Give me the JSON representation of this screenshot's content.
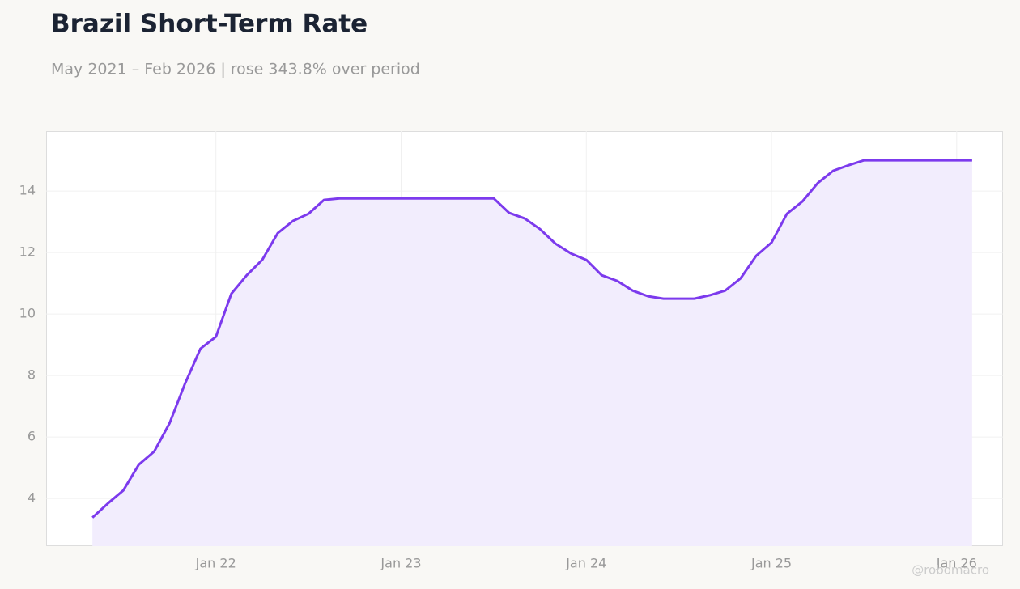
{
  "chart_data": {
    "type": "line",
    "title": "Brazil Short-Term Rate",
    "subtitle": "May 2021 – Feb 2026 | rose 343.8% over period",
    "watermark": "@robomacro",
    "x": [
      "2021-05",
      "2021-06",
      "2021-07",
      "2021-08",
      "2021-09",
      "2021-10",
      "2021-11",
      "2021-12",
      "2022-01",
      "2022-02",
      "2022-03",
      "2022-04",
      "2022-05",
      "2022-06",
      "2022-07",
      "2022-08",
      "2022-09",
      "2022-10",
      "2022-11",
      "2022-12",
      "2023-01",
      "2023-02",
      "2023-03",
      "2023-04",
      "2023-05",
      "2023-06",
      "2023-07",
      "2023-08",
      "2023-09",
      "2023-10",
      "2023-11",
      "2023-12",
      "2024-01",
      "2024-02",
      "2024-03",
      "2024-04",
      "2024-05",
      "2024-06",
      "2024-07",
      "2024-08",
      "2024-09",
      "2024-10",
      "2024-11",
      "2024-12",
      "2025-01",
      "2025-02",
      "2025-03",
      "2025-04",
      "2025-05",
      "2025-06",
      "2025-07",
      "2025-08",
      "2025-09",
      "2025-10",
      "2025-11",
      "2025-12",
      "2026-01",
      "2026-02"
    ],
    "series": [
      {
        "color": "#7c3aed",
        "fill": "#f2edfd",
        "values": [
          3.38,
          3.84,
          4.26,
          5.1,
          5.53,
          6.45,
          7.74,
          8.87,
          9.26,
          10.66,
          11.26,
          11.76,
          12.63,
          13.03,
          13.26,
          13.71,
          13.76,
          13.76,
          13.76,
          13.76,
          13.76,
          13.76,
          13.76,
          13.76,
          13.76,
          13.76,
          13.76,
          13.29,
          13.11,
          12.76,
          12.29,
          11.97,
          11.76,
          11.26,
          11.08,
          10.76,
          10.58,
          10.5,
          10.5,
          10.5,
          10.61,
          10.76,
          11.16,
          11.89,
          12.32,
          13.26,
          13.66,
          14.26,
          14.66,
          14.84,
          15,
          15,
          15,
          15,
          15,
          15,
          15,
          15
        ]
      }
    ],
    "xlim": [
      "2021-02",
      "2026-04"
    ],
    "xticks": [
      {
        "value": "2022-01",
        "label": "Jan 22"
      },
      {
        "value": "2023-01",
        "label": "Jan 23"
      },
      {
        "value": "2024-01",
        "label": "Jan 24"
      },
      {
        "value": "2025-01",
        "label": "Jan 25"
      },
      {
        "value": "2026-01",
        "label": "Jan 26"
      }
    ],
    "ylim": [
      2.45,
      15.95
    ],
    "yticks": [
      4,
      6,
      8,
      10,
      12,
      14
    ],
    "grid": true
  }
}
